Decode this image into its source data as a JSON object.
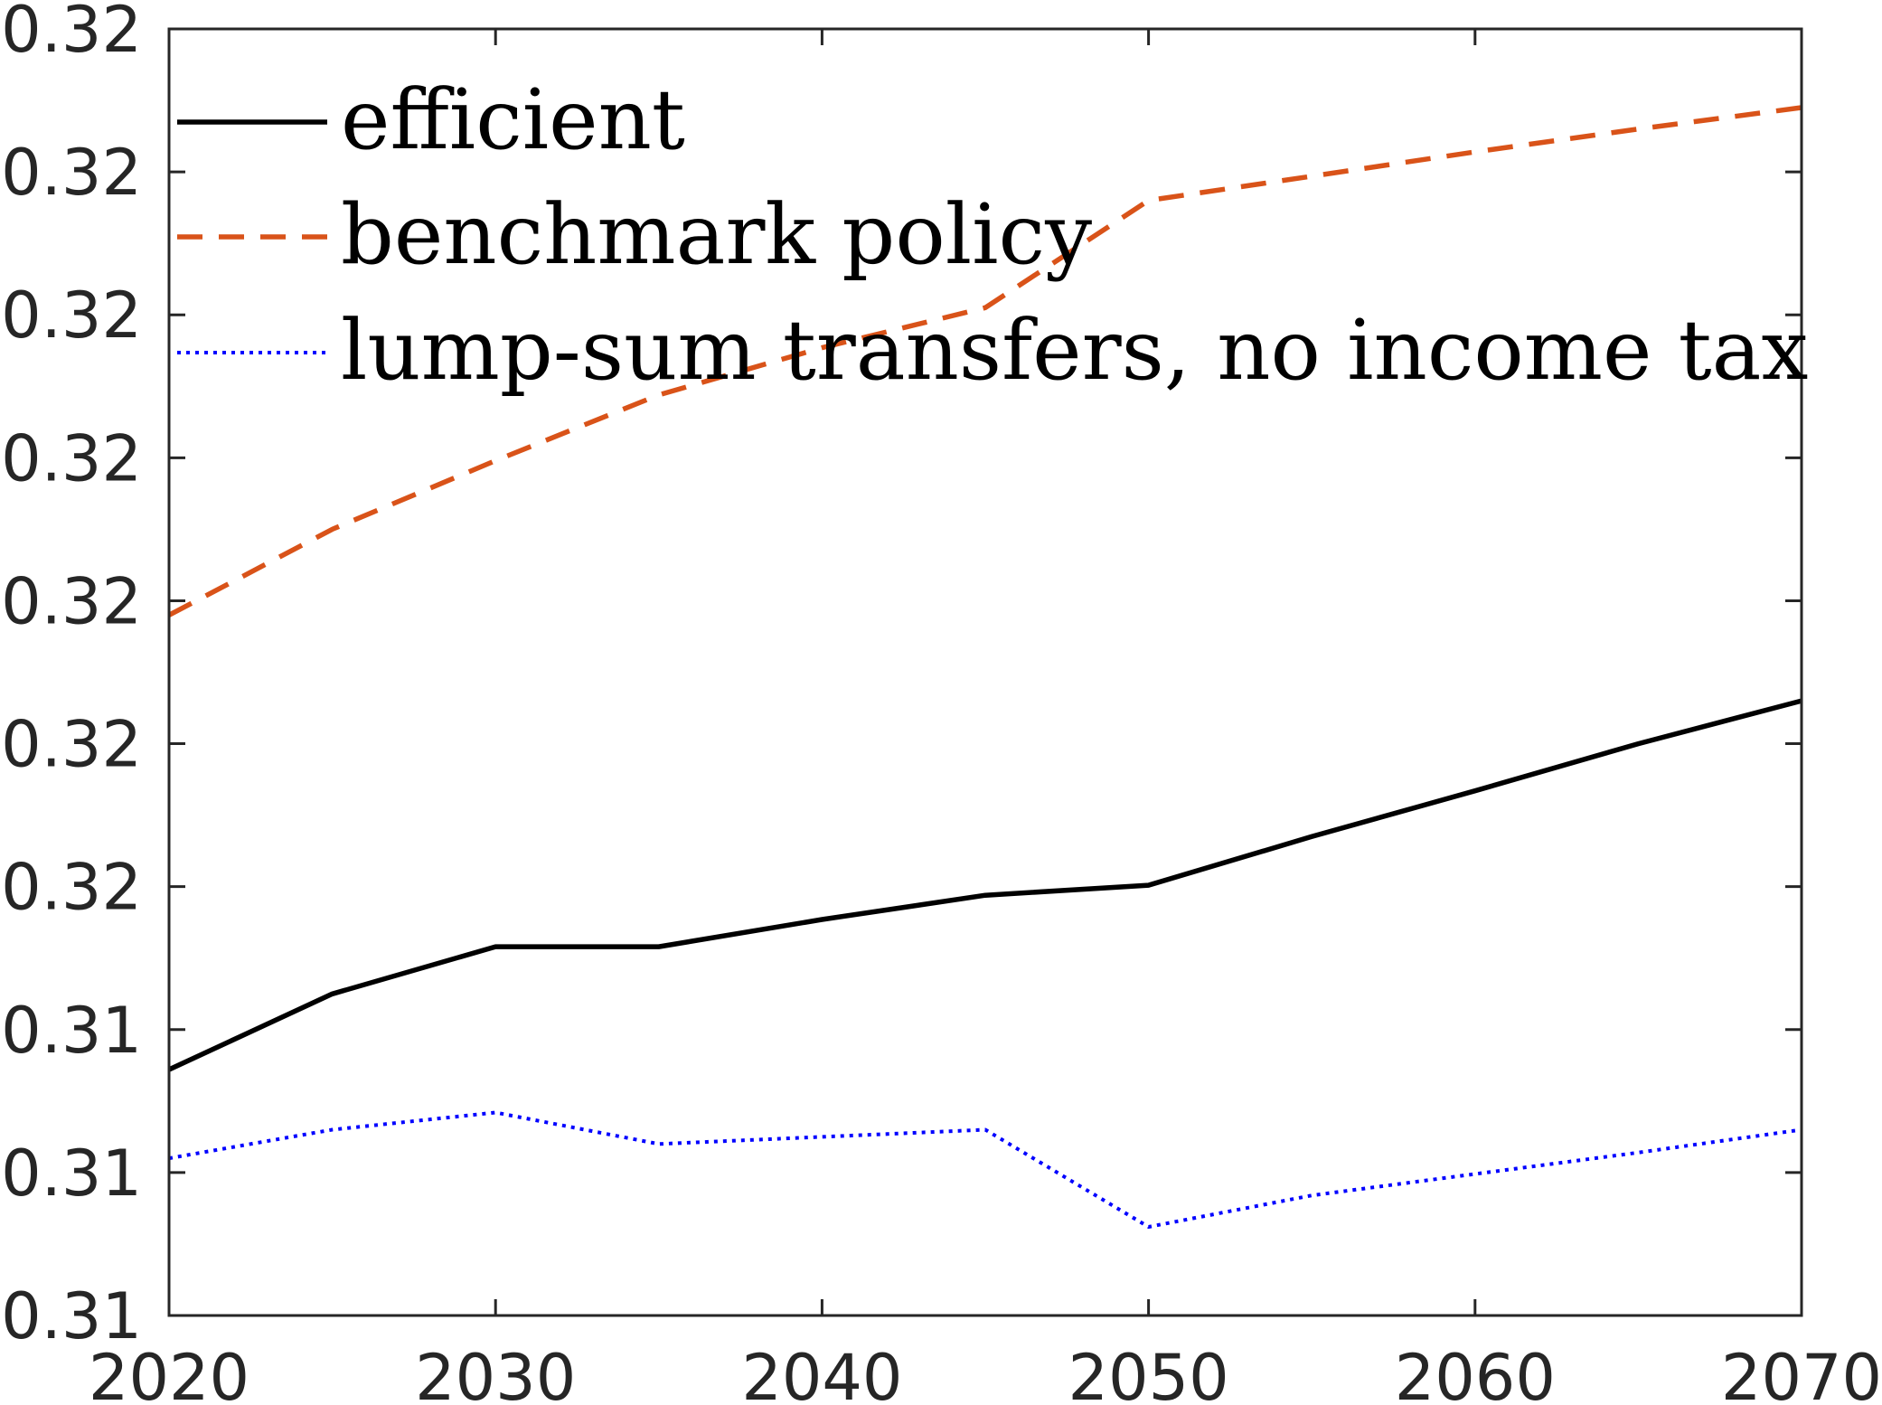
{
  "chart_data": {
    "type": "line",
    "xlim": [
      2020,
      2070
    ],
    "ylim": [
      0,
      9
    ],
    "x_ticks": [
      2020,
      2030,
      2040,
      2050,
      2060,
      2070
    ],
    "x_tick_labels": [
      "2020",
      "2030",
      "2040",
      "2050",
      "2060",
      "2070"
    ],
    "y_ticks": [
      0,
      1,
      2,
      3,
      4,
      5,
      6,
      7,
      8,
      9
    ],
    "y_tick_labels": [
      "0.31",
      "0.31",
      "0.31",
      "0.32",
      "0.32",
      "0.32",
      "0.32",
      "0.32",
      "0.32",
      "0.32"
    ],
    "y_note": "y tick labels are rounded; numeric y values are expressed in tick-index units (0 = bottom tick, 9 = top tick)",
    "grid": false,
    "legend_position": "top-left",
    "x": [
      2020,
      2025,
      2030,
      2035,
      2040,
      2045,
      2050,
      2055,
      2060,
      2065,
      2070
    ],
    "series": [
      {
        "name": "efficient",
        "color": "#000000",
        "style": "solid",
        "values": [
          1.72,
          2.25,
          2.58,
          2.58,
          2.77,
          2.94,
          3.01,
          3.35,
          3.67,
          4.0,
          4.3
        ]
      },
      {
        "name": "benchmark policy",
        "color": "#D95319",
        "style": "dashed",
        "values": [
          4.9,
          5.5,
          5.98,
          6.44,
          6.77,
          7.05,
          7.8,
          7.97,
          8.14,
          8.3,
          8.45
        ]
      },
      {
        "name": "lump-sum transfers, no income tax",
        "color": "#0000FF",
        "style": "dotted",
        "values": [
          1.1,
          1.3,
          1.42,
          1.2,
          1.25,
          1.3,
          0.62,
          0.84,
          0.99,
          1.14,
          1.3
        ]
      }
    ]
  }
}
